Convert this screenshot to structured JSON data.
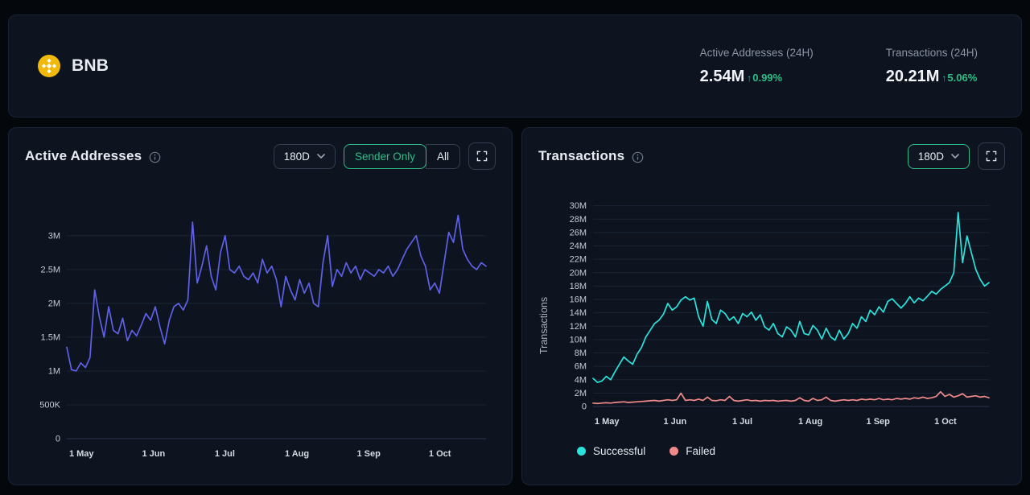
{
  "header": {
    "coin": "BNB",
    "metrics": [
      {
        "label": "Active Addresses (24H)",
        "value": "2.54M",
        "arrow": "↑",
        "change": "0.99%",
        "direction": "up"
      },
      {
        "label": "Transactions (24H)",
        "value": "20.21M",
        "arrow": "↑",
        "change": "5.06%",
        "direction": "up"
      }
    ]
  },
  "colors": {
    "accent_green": "#2ebd85",
    "active_addresses_line": "#5e60e7",
    "successful_line": "#2ae3dc",
    "failed_line": "#f08a8a",
    "card_bg": "#0d1420",
    "page_bg": "#04070c"
  },
  "cards": {
    "active_addresses": {
      "title": "Active Addresses",
      "range_selector": "180D",
      "toggle": {
        "options": [
          "Sender Only",
          "All"
        ],
        "active": "Sender Only"
      }
    },
    "transactions": {
      "title": "Transactions",
      "range_selector": "180D",
      "y_axis_title": "Transactions",
      "legend": [
        {
          "label": "Successful",
          "color": "#2ae3dc"
        },
        {
          "label": "Failed",
          "color": "#f08a8a"
        }
      ]
    }
  },
  "chart_data": [
    {
      "type": "line",
      "title": "Active Addresses",
      "x_range": "180D (1 May – late Oct)",
      "unit": "millions of addresses",
      "ylim": [
        0,
        3.45
      ],
      "grid": "horizontal",
      "yticks": [
        {
          "value": 0,
          "label": "0"
        },
        {
          "value": 0.5,
          "label": "500K"
        },
        {
          "value": 1,
          "label": "1M"
        },
        {
          "value": 1.5,
          "label": "1.5M"
        },
        {
          "value": 2,
          "label": "2M"
        },
        {
          "value": 2.5,
          "label": "2.5M"
        },
        {
          "value": 3,
          "label": "3M"
        }
      ],
      "xticks": [
        {
          "pos": 0.035,
          "label": "1 May"
        },
        {
          "pos": 0.207,
          "label": "1 Jun"
        },
        {
          "pos": 0.377,
          "label": "1 Jul"
        },
        {
          "pos": 0.549,
          "label": "1 Aug"
        },
        {
          "pos": 0.72,
          "label": "1 Sep"
        },
        {
          "pos": 0.89,
          "label": "1 Oct"
        }
      ],
      "series": [
        {
          "name": "Active Addresses (Sender Only)",
          "color": "#5e60e7",
          "values": [
            1.35,
            1.02,
            1.0,
            1.12,
            1.05,
            1.2,
            2.2,
            1.8,
            1.5,
            1.95,
            1.6,
            1.55,
            1.78,
            1.45,
            1.6,
            1.52,
            1.68,
            1.85,
            1.75,
            1.95,
            1.65,
            1.4,
            1.75,
            1.95,
            2.0,
            1.9,
            2.05,
            3.2,
            2.3,
            2.55,
            2.85,
            2.4,
            2.2,
            2.75,
            3.0,
            2.5,
            2.45,
            2.55,
            2.4,
            2.35,
            2.45,
            2.3,
            2.65,
            2.45,
            2.55,
            2.35,
            1.95,
            2.4,
            2.2,
            2.05,
            2.35,
            2.15,
            2.3,
            2.0,
            1.95,
            2.6,
            3.0,
            2.25,
            2.5,
            2.4,
            2.6,
            2.45,
            2.55,
            2.35,
            2.5,
            2.45,
            2.4,
            2.5,
            2.45,
            2.55,
            2.4,
            2.5,
            2.65,
            2.8,
            2.9,
            3.0,
            2.7,
            2.55,
            2.2,
            2.3,
            2.15,
            2.6,
            3.05,
            2.9,
            3.3,
            2.8,
            2.65,
            2.55,
            2.5,
            2.6,
            2.55
          ]
        }
      ]
    },
    {
      "type": "line",
      "title": "Transactions",
      "x_range": "180D (1 May – late Oct)",
      "unit": "millions of transactions",
      "ylim": [
        0,
        30.8
      ],
      "grid": "horizontal",
      "legend_position": "bottom-left",
      "yticks": [
        {
          "value": 0,
          "label": "0"
        },
        {
          "value": 2,
          "label": "2M"
        },
        {
          "value": 4,
          "label": "4M"
        },
        {
          "value": 6,
          "label": "6M"
        },
        {
          "value": 8,
          "label": "8M"
        },
        {
          "value": 10,
          "label": "10M"
        },
        {
          "value": 12,
          "label": "12M"
        },
        {
          "value": 14,
          "label": "14M"
        },
        {
          "value": 16,
          "label": "16M"
        },
        {
          "value": 18,
          "label": "18M"
        },
        {
          "value": 20,
          "label": "20M"
        },
        {
          "value": 22,
          "label": "22M"
        },
        {
          "value": 24,
          "label": "24M"
        },
        {
          "value": 26,
          "label": "26M"
        },
        {
          "value": 28,
          "label": "28M"
        },
        {
          "value": 30,
          "label": "30M"
        }
      ],
      "xticks": [
        {
          "pos": 0.035,
          "label": "1 May"
        },
        {
          "pos": 0.207,
          "label": "1 Jun"
        },
        {
          "pos": 0.377,
          "label": "1 Jul"
        },
        {
          "pos": 0.549,
          "label": "1 Aug"
        },
        {
          "pos": 0.72,
          "label": "1 Sep"
        },
        {
          "pos": 0.89,
          "label": "1 Oct"
        }
      ],
      "series": [
        {
          "name": "Successful",
          "color": "#2ae3dc",
          "values": [
            4.2,
            3.6,
            3.8,
            4.5,
            4.0,
            5.2,
            6.3,
            7.4,
            6.8,
            6.3,
            7.8,
            8.8,
            10.4,
            11.4,
            12.4,
            12.9,
            13.8,
            15.4,
            14.4,
            14.9,
            15.9,
            16.4,
            15.9,
            16.2,
            13.4,
            12.0,
            15.7,
            13.0,
            12.4,
            14.4,
            13.9,
            12.9,
            13.4,
            12.4,
            13.9,
            13.4,
            14.1,
            12.9,
            13.7,
            11.9,
            11.4,
            12.4,
            10.9,
            10.4,
            11.9,
            11.4,
            10.4,
            12.7,
            10.9,
            10.7,
            12.1,
            11.4,
            10.1,
            11.7,
            10.4,
            9.9,
            11.4,
            10.1,
            10.9,
            12.4,
            11.7,
            13.4,
            12.7,
            14.4,
            13.7,
            14.9,
            14.1,
            15.7,
            16.1,
            15.4,
            14.7,
            15.4,
            16.4,
            15.5,
            16.2,
            15.8,
            16.5,
            17.2,
            16.8,
            17.5,
            18.0,
            18.5,
            20.0,
            29.0,
            21.5,
            25.5,
            23.0,
            20.5,
            19.0,
            18.0,
            18.5
          ]
        },
        {
          "name": "Failed",
          "color": "#f08a8a",
          "values": [
            0.5,
            0.45,
            0.5,
            0.55,
            0.5,
            0.6,
            0.65,
            0.7,
            0.6,
            0.65,
            0.7,
            0.75,
            0.8,
            0.85,
            0.9,
            0.8,
            0.9,
            1.0,
            0.9,
            1.0,
            2.0,
            0.9,
            1.0,
            0.9,
            1.1,
            0.9,
            1.4,
            0.9,
            0.85,
            1.0,
            0.9,
            1.5,
            0.9,
            0.8,
            0.9,
            1.0,
            0.85,
            0.9,
            0.8,
            0.9,
            0.85,
            0.9,
            0.8,
            0.85,
            0.9,
            0.8,
            0.9,
            1.3,
            0.9,
            0.8,
            1.2,
            0.9,
            1.0,
            1.4,
            0.9,
            0.8,
            0.9,
            1.0,
            0.9,
            1.0,
            0.9,
            1.1,
            1.0,
            1.1,
            1.0,
            1.2,
            1.0,
            1.1,
            1.0,
            1.2,
            1.1,
            1.2,
            1.1,
            1.3,
            1.2,
            1.4,
            1.2,
            1.3,
            1.5,
            2.2,
            1.5,
            1.8,
            1.4,
            1.6,
            1.9,
            1.4,
            1.5,
            1.6,
            1.4,
            1.5,
            1.3
          ]
        }
      ]
    }
  ]
}
